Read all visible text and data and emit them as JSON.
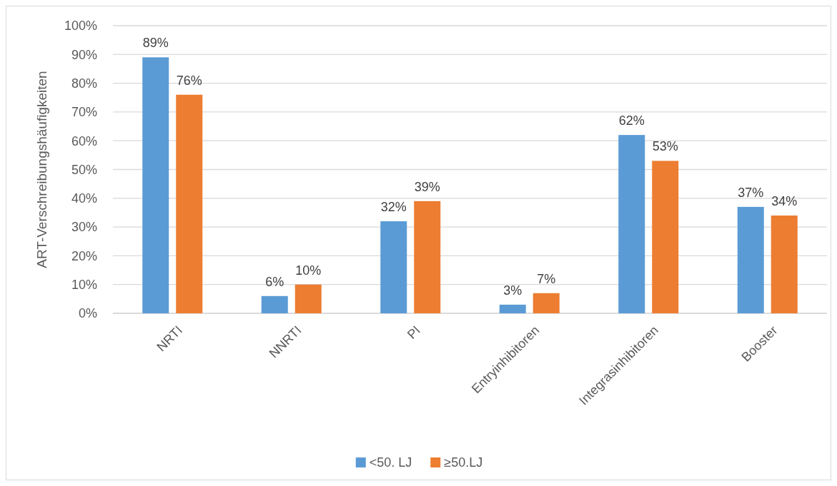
{
  "chart_data": {
    "type": "bar",
    "categories": [
      "NRTI",
      "NNRTI",
      "PI",
      "Entryinhibitoren",
      "Integrasinhibitoren",
      "Booster"
    ],
    "series": [
      {
        "name": "<50. LJ",
        "color": "#5b9bd5",
        "values": [
          89,
          6,
          32,
          3,
          62,
          37
        ],
        "value_labels": [
          "89%",
          "6%",
          "32%",
          "3%",
          "62%",
          "37%"
        ]
      },
      {
        "name": "≥50.LJ",
        "color": "#ed7d31",
        "values": [
          76,
          10,
          39,
          7,
          53,
          34
        ],
        "value_labels": [
          "76%",
          "10%",
          "39%",
          "7%",
          "53%",
          "34%"
        ]
      }
    ],
    "ylabel": "ART-Verschreibungshäufigkeiten",
    "ylim": [
      0,
      100
    ],
    "yticks": [
      {
        "value": 0,
        "label": "0%"
      },
      {
        "value": 10,
        "label": "10%"
      },
      {
        "value": 20,
        "label": "20%"
      },
      {
        "value": 30,
        "label": "30%"
      },
      {
        "value": 40,
        "label": "40%"
      },
      {
        "value": 50,
        "label": "50%"
      },
      {
        "value": 60,
        "label": "60%"
      },
      {
        "value": 70,
        "label": "70%"
      },
      {
        "value": 80,
        "label": "80%"
      },
      {
        "value": 90,
        "label": "90%"
      },
      {
        "value": 100,
        "label": "100%"
      }
    ],
    "grid": "y",
    "legend": "bottom"
  }
}
